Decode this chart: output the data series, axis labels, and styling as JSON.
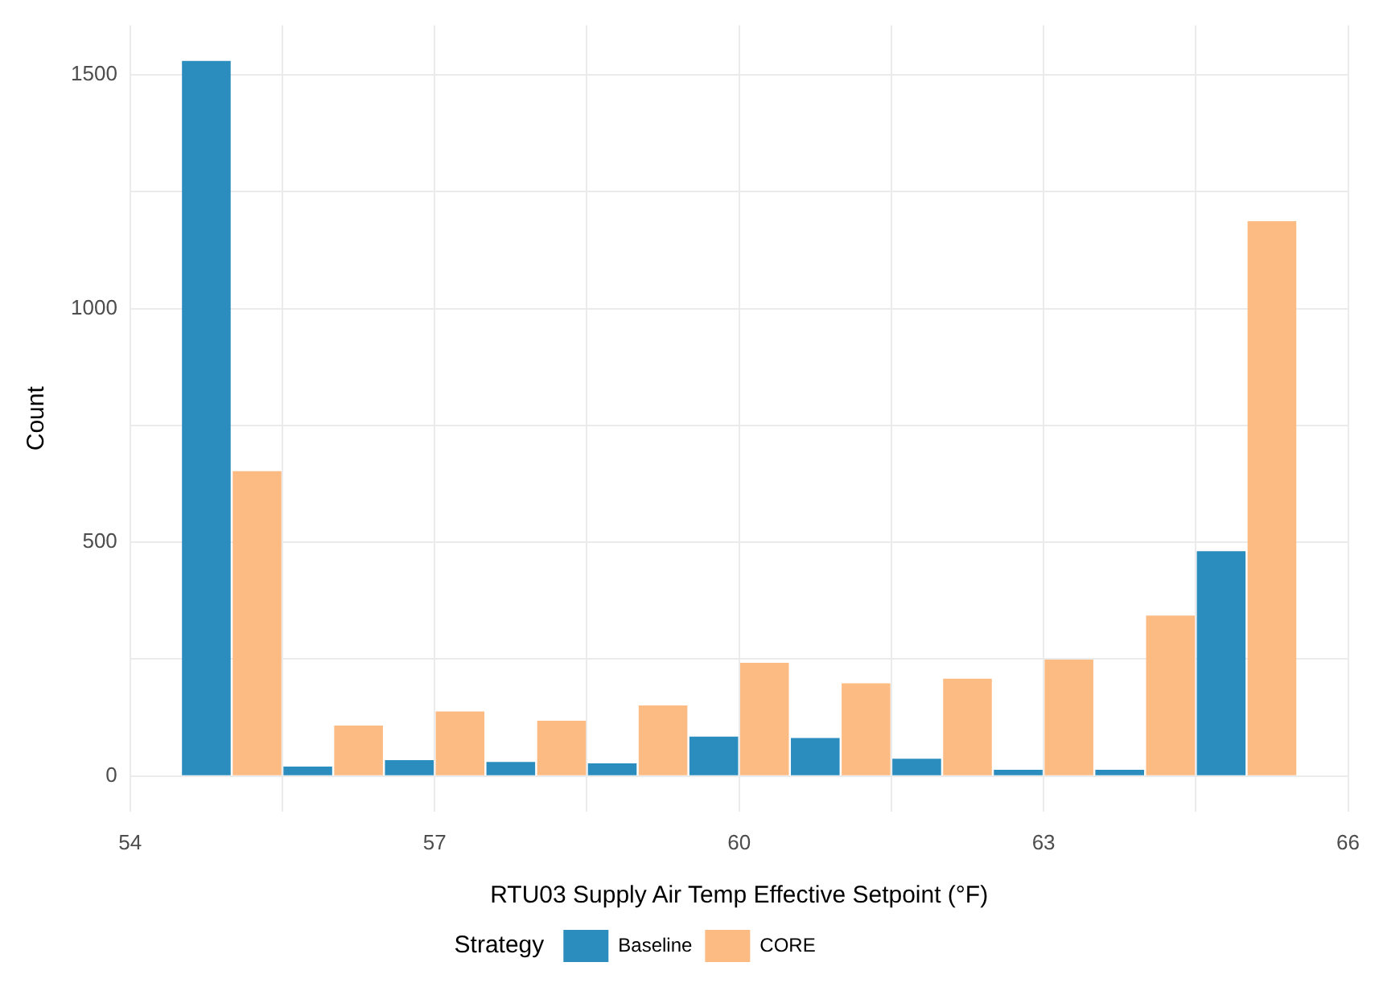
{
  "chart_data": {
    "type": "histogram",
    "xlabel": "RTU03 Supply Air Temp Effective Setpoint (°F)",
    "ylabel": "Count",
    "legend_title": "Strategy",
    "legend": "bottom",
    "grid": true,
    "bins": [
      54.5,
      55.5,
      56.5,
      57.5,
      58.5,
      59.5,
      60.5,
      61.5,
      62.5,
      63.5,
      64.5,
      65.5
    ],
    "xlim": [
      54,
      66
    ],
    "xticks": [
      54,
      {
        "value": 55.5,
        "label": null
      },
      57,
      {
        "value": 58.5,
        "label": null
      },
      60,
      {
        "value": 61.5,
        "label": null
      },
      63,
      {
        "value": 64.5,
        "label": null
      },
      66
    ],
    "ylim": [
      -76,
      1606
    ],
    "yticks": [
      0,
      {
        "value": 250,
        "label": null
      },
      500,
      {
        "value": 750,
        "label": null
      },
      1000,
      {
        "value": 1250,
        "label": null
      },
      1500
    ],
    "series": [
      {
        "name": "Baseline",
        "color": "#2b8cbe",
        "values": [
          1530,
          20,
          34,
          30,
          27,
          84,
          81,
          37,
          13,
          13,
          481
        ]
      },
      {
        "name": "CORE",
        "color": "#fdbb84",
        "values": [
          652,
          108,
          138,
          118,
          151,
          242,
          198,
          208,
          249,
          343,
          1187
        ]
      }
    ]
  }
}
